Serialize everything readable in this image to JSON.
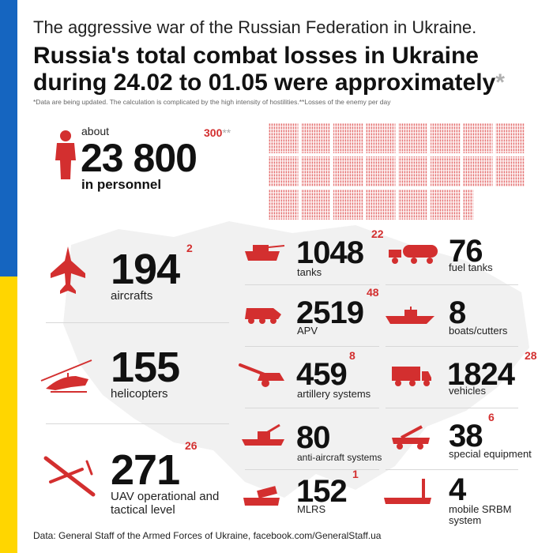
{
  "header": {
    "subtitle": "The aggressive war of the Russian Federation in Ukraine.",
    "title_line1": "Russia's total combat losses in Ukraine",
    "title_line2": "during 24.02 to 01.05 were approximately",
    "title_star": "*",
    "note": "*Data are being updated. The calculation is complicated by the high intensity of hostilities.**Losses of the enemy per day"
  },
  "personnel": {
    "about": "about",
    "value": "23 800",
    "label": "in personnel",
    "daily": "300",
    "daily_star": "**"
  },
  "left_items": [
    {
      "value": "194",
      "label": "aircrafts",
      "daily": "2",
      "icon": "jet-icon"
    },
    {
      "value": "155",
      "label": "helicopters",
      "daily": "",
      "icon": "helicopter-icon"
    },
    {
      "value": "271",
      "label": "UAV operational and tactical level",
      "daily": "26",
      "icon": "drone-icon"
    }
  ],
  "mid_items": [
    {
      "value": "1048",
      "label": "tanks",
      "daily": "22",
      "icon": "tank-icon"
    },
    {
      "value": "2519",
      "label": "APV",
      "daily": "48",
      "icon": "apv-icon"
    },
    {
      "value": "459",
      "label": "artillery systems",
      "daily": "8",
      "icon": "artillery-icon"
    },
    {
      "value": "80",
      "label": "anti-aircraft systems",
      "daily": "",
      "icon": "anti-aircraft-icon"
    },
    {
      "value": "152",
      "label": "MLRS",
      "daily": "1",
      "icon": "mlrs-icon"
    }
  ],
  "right_items": [
    {
      "value": "76",
      "label": "fuel tanks",
      "daily": "",
      "icon": "fuel-tank-icon"
    },
    {
      "value": "8",
      "label": "boats/cutters",
      "daily": "",
      "icon": "boat-icon"
    },
    {
      "value": "1824",
      "label": "vehicles",
      "daily": "28",
      "icon": "truck-icon"
    },
    {
      "value": "38",
      "label": "special equipment",
      "daily": "6",
      "icon": "crane-truck-icon"
    },
    {
      "value": "4",
      "label": "mobile SRBM system",
      "daily": "",
      "icon": "srbm-launcher-icon"
    }
  ],
  "source": "Data: General Staff of the Armed Forces of Ukraine, facebook.com/GeneralStaff.ua",
  "colors": {
    "accent": "#d32f2f",
    "flag_blue": "#1565c0",
    "flag_yellow": "#ffd600"
  }
}
